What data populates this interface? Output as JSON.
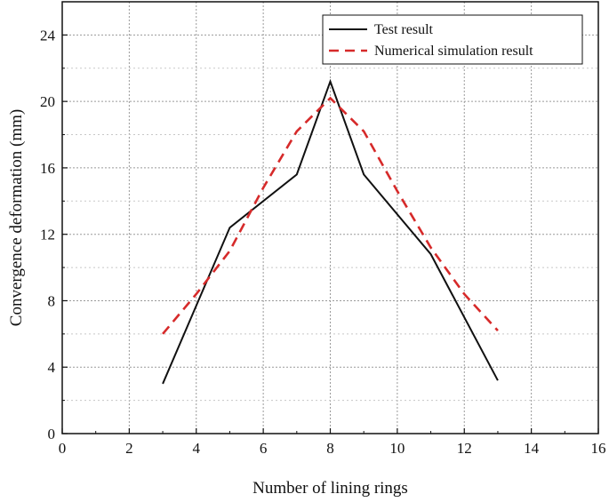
{
  "chart_data": {
    "type": "line",
    "title": "",
    "xlabel": "Number of lining rings",
    "ylabel": "Convergence deformation (mm)",
    "xlim": [
      0,
      16
    ],
    "ylim": [
      0,
      26
    ],
    "xticks": [
      0,
      2,
      4,
      6,
      8,
      10,
      12,
      14,
      16
    ],
    "yticks": [
      0,
      4,
      8,
      12,
      16,
      20,
      24
    ],
    "grid": true,
    "legend_position": "top-right",
    "series": [
      {
        "name": "Test result",
        "color": "#111111",
        "style": "solid",
        "x": [
          3,
          5,
          7,
          8,
          9,
          11,
          13
        ],
        "y": [
          3.0,
          12.4,
          15.6,
          21.2,
          15.6,
          10.8,
          3.2
        ]
      },
      {
        "name": "Numerical simulation result",
        "color": "#d62a2a",
        "style": "dashed",
        "x": [
          3,
          4,
          5,
          6,
          7,
          8,
          9,
          10,
          11,
          12,
          13
        ],
        "y": [
          6.0,
          8.4,
          11.0,
          14.8,
          18.2,
          20.2,
          18.2,
          14.6,
          11.2,
          8.4,
          6.2
        ]
      }
    ]
  }
}
